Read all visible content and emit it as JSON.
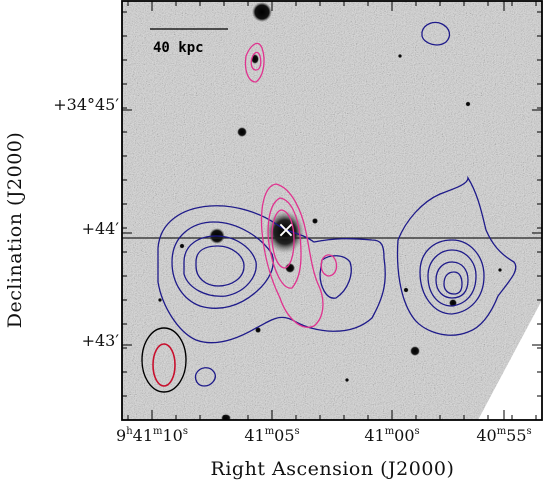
{
  "chart_data": {
    "type": "image-contour",
    "xlabel": "Right Ascension (J2000)",
    "ylabel": "Declination (J2000)",
    "x_ticks": [
      {
        "h": "9",
        "m": "41",
        "s": "10",
        "prefix": true
      },
      {
        "m": "41",
        "s": "05"
      },
      {
        "m": "41",
        "s": "00"
      },
      {
        "m": "40",
        "s": "55"
      }
    ],
    "y_ticks": [
      "+34°45′",
      "+44′",
      "+43′"
    ],
    "scale_bar_label": "40 kpc",
    "marker": "×",
    "contour_colors": {
      "blue": "#1e1a8a",
      "magenta": "#e0338f",
      "beam_inner": "#c8102e",
      "beam_outer": "#000000"
    },
    "grid": false
  }
}
